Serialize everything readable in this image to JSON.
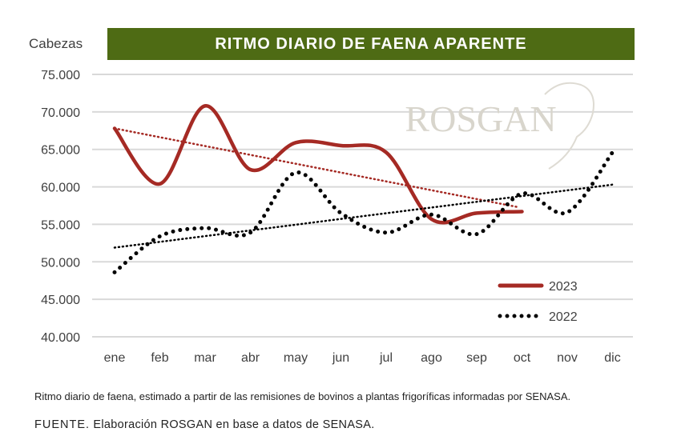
{
  "chart_data": {
    "type": "line",
    "title": "RITMO DIARIO DE FAENA APARENTE",
    "ylabel": "Cabezas",
    "xlabel": "",
    "categories": [
      "ene",
      "feb",
      "mar",
      "abr",
      "may",
      "jun",
      "jul",
      "ago",
      "sep",
      "oct",
      "nov",
      "dic"
    ],
    "ylim": [
      40000,
      75000
    ],
    "yticks": [
      "40.000",
      "45.000",
      "50.000",
      "55.000",
      "60.000",
      "65.000",
      "70.000",
      "75.000"
    ],
    "ytick_values": [
      40000,
      45000,
      50000,
      55000,
      60000,
      65000,
      70000,
      75000
    ],
    "grid": true,
    "legend_position": "bottom-right",
    "series": [
      {
        "name": "2023",
        "style": "solid",
        "color": "#a52a24",
        "values": [
          67800,
          60400,
          70800,
          62300,
          65900,
          65500,
          64600,
          55700,
          56500,
          56700,
          null,
          null
        ],
        "trend": [
          67800,
          57300
        ]
      },
      {
        "name": "2022",
        "style": "dotted",
        "color": "#000000",
        "values": [
          48600,
          53400,
          54500,
          53900,
          61900,
          56500,
          53900,
          56300,
          53700,
          59100,
          56600,
          64600
        ],
        "trend": [
          51900,
          60300
        ]
      }
    ],
    "watermark": "ROSGAN"
  },
  "footnote": "Ritmo diario de faena, estimado a partir de las remisiones de bovinos a plantas frigoríficas informadas por SENASA.",
  "source_label": "FUENTE.",
  "source_text": " Elaboración ROSGAN en base a datos de SENASA."
}
